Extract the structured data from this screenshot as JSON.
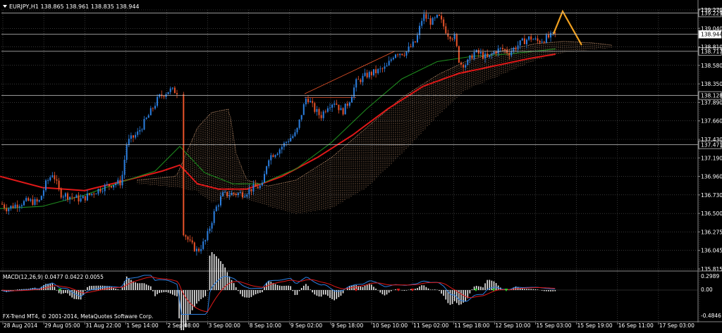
{
  "header": {
    "symbol_line": "EURJPY,H1  138.865 138.961 138.835 138.944"
  },
  "footer_text": "FX-Trend MT4, © 2001-2014, MetaQuotes Software Corp.",
  "macd": {
    "label": "MACD(12,26,9) 0.0477 0.0422 0.0055",
    "axis": {
      "max": "0.2989",
      "zero": "0.00",
      "min": "-0.4846"
    }
  },
  "colors": {
    "grid": "#5a5a5a",
    "bull": "#2b7fe0",
    "bear": "#e8532a",
    "ma_fast": "#1e8a1e",
    "ma_slow": "#e01818",
    "cloud": "#d8a27a",
    "forecast": "#f0a020"
  },
  "chart_data": {
    "type": "candlestick",
    "symbol": "EURJPY",
    "timeframe": "H1",
    "ohlc_current": {
      "open": 138.865,
      "high": 138.961,
      "low": 138.835,
      "close": 138.944
    },
    "y_ticks": [
      "139.270",
      "139.040",
      "138.810",
      "138.580",
      "138.350",
      "137.890",
      "137.660",
      "137.430",
      "137.190",
      "136.960",
      "136.730",
      "136.500",
      "136.275",
      "136.045",
      "135.815"
    ],
    "y_range": [
      135.815,
      139.27
    ],
    "levels": [
      {
        "label": "139.229",
        "value": 139.229
      },
      {
        "label": "138.944",
        "value": 138.944,
        "current": true
      },
      {
        "label": "138.717",
        "value": 138.717
      },
      {
        "label": "138.128",
        "value": 138.128
      },
      {
        "label": "137.471",
        "value": 137.471
      }
    ],
    "x_labels": [
      "28 Aug 2014",
      "29 Aug 05:00",
      "31 Aug 22:00",
      "1 Sep 14:00",
      "2 Sep 08:00",
      "3 Sep 00:00",
      "8 Sep 10:00",
      "9 Sep 02:00",
      "9 Sep 18:00",
      "10 Sep 10:00",
      "11 Sep 02:00",
      "11 Sep 18:00",
      "12 Sep 10:00",
      "15 Sep 03:00",
      "15 Sep 19:00",
      "16 Sep 11:00",
      "17 Sep 03:00"
    ],
    "price_path": [
      [
        0,
        136.7
      ],
      [
        10,
        136.62
      ],
      [
        25,
        136.68
      ],
      [
        40,
        136.72
      ],
      [
        55,
        136.7
      ],
      [
        65,
        136.95
      ],
      [
        75,
        137.1
      ],
      [
        85,
        136.82
      ],
      [
        100,
        136.78
      ],
      [
        115,
        136.74
      ],
      [
        130,
        136.82
      ],
      [
        145,
        136.9
      ],
      [
        160,
        136.95
      ],
      [
        172,
        136.97
      ],
      [
        180,
        137.5
      ],
      [
        195,
        137.62
      ],
      [
        210,
        137.85
      ],
      [
        225,
        138.1
      ],
      [
        240,
        138.2
      ],
      [
        252,
        138.18
      ],
      [
        258,
        136.35
      ],
      [
        270,
        136.15
      ],
      [
        280,
        136.05
      ],
      [
        292,
        136.2
      ],
      [
        305,
        136.6
      ],
      [
        315,
        136.8
      ],
      [
        330,
        136.82
      ],
      [
        345,
        136.82
      ],
      [
        360,
        136.9
      ],
      [
        372,
        136.92
      ],
      [
        380,
        137.3
      ],
      [
        395,
        137.4
      ],
      [
        410,
        137.55
      ],
      [
        420,
        137.62
      ],
      [
        428,
        137.9
      ],
      [
        435,
        138.12
      ],
      [
        445,
        137.95
      ],
      [
        455,
        137.85
      ],
      [
        465,
        138.0
      ],
      [
        475,
        138.05
      ],
      [
        485,
        137.9
      ],
      [
        495,
        138.05
      ],
      [
        505,
        138.3
      ],
      [
        520,
        138.4
      ],
      [
        535,
        138.45
      ],
      [
        548,
        138.5
      ],
      [
        560,
        138.7
      ],
      [
        575,
        138.7
      ],
      [
        590,
        138.85
      ],
      [
        600,
        139.2
      ],
      [
        612,
        139.1
      ],
      [
        622,
        139.18
      ],
      [
        635,
        138.95
      ],
      [
        645,
        138.9
      ],
      [
        652,
        138.55
      ],
      [
        662,
        138.55
      ],
      [
        672,
        138.7
      ],
      [
        682,
        138.68
      ],
      [
        692,
        138.62
      ],
      [
        702,
        138.72
      ],
      [
        712,
        138.75
      ],
      [
        722,
        138.7
      ],
      [
        732,
        138.78
      ],
      [
        742,
        138.85
      ],
      [
        752,
        138.9
      ],
      [
        762,
        138.85
      ],
      [
        772,
        138.88
      ],
      [
        782,
        138.92
      ],
      [
        788,
        138.944
      ]
    ],
    "series": [
      {
        "points": [
          [
            0,
            137.05
          ],
          [
            60,
            136.9
          ],
          [
            120,
            136.86
          ],
          [
            180,
            137.0
          ],
          [
            230,
            137.12
          ],
          [
            255,
            137.2
          ],
          [
            280,
            136.95
          ],
          [
            310,
            136.88
          ],
          [
            350,
            136.88
          ],
          [
            400,
            137.05
          ],
          [
            450,
            137.3
          ],
          [
            500,
            137.6
          ],
          [
            550,
            137.95
          ],
          [
            600,
            138.25
          ],
          [
            650,
            138.42
          ],
          [
            700,
            138.52
          ],
          [
            750,
            138.62
          ],
          [
            788,
            138.68
          ]
        ]
      },
      {
        "points": [
          [
            0,
            136.62
          ],
          [
            60,
            136.65
          ],
          [
            120,
            136.8
          ],
          [
            180,
            137.0
          ],
          [
            220,
            137.12
          ],
          [
            255,
            137.45
          ],
          [
            290,
            137.1
          ],
          [
            330,
            136.95
          ],
          [
            370,
            136.95
          ],
          [
            420,
            137.15
          ],
          [
            470,
            137.5
          ],
          [
            520,
            137.95
          ],
          [
            570,
            138.35
          ],
          [
            620,
            138.58
          ],
          [
            670,
            138.65
          ],
          [
            720,
            138.68
          ],
          [
            760,
            138.72
          ],
          [
            788,
            138.75
          ]
        ]
      }
    ],
    "forecast_path": [
      [
        785,
        138.95
      ],
      [
        798,
        139.25
      ],
      [
        825,
        138.8
      ]
    ],
    "macd_range": [
      -0.4846,
      0.2989
    ]
  }
}
